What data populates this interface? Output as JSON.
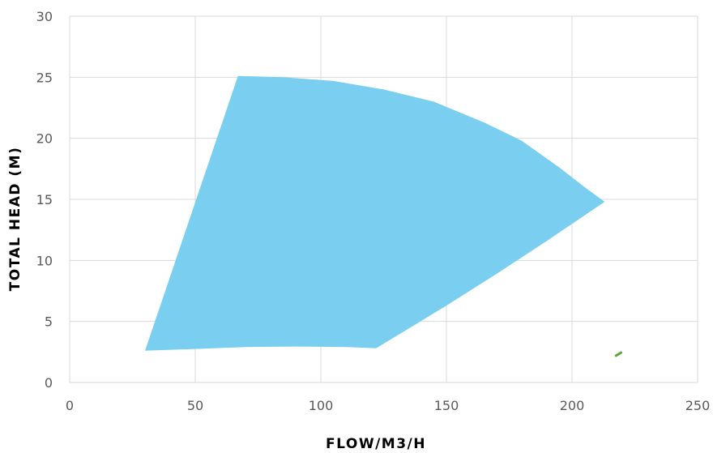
{
  "chart_data": {
    "type": "area",
    "title": "",
    "xlabel": "FLOW/M3/H",
    "ylabel": "TOTAL HEAD (M)",
    "xlim": [
      0,
      250
    ],
    "ylim": [
      0,
      30
    ],
    "xticks": [
      "0",
      "50",
      "100",
      "150",
      "200",
      "250"
    ],
    "yticks": [
      "0",
      "5",
      "10",
      "15",
      "20",
      "25",
      "30"
    ],
    "grid": true,
    "legend": "none",
    "series": [
      {
        "type": "area",
        "color": "#7ACFF0",
        "points": [
          [
            67,
            25.1
          ],
          [
            85,
            25.0
          ],
          [
            105,
            24.7
          ],
          [
            125,
            24.0
          ],
          [
            145,
            23.0
          ],
          [
            165,
            21.3
          ],
          [
            180,
            19.8
          ],
          [
            195,
            17.6
          ],
          [
            205,
            16.0
          ],
          [
            213,
            14.8
          ],
          [
            190,
            11.6
          ],
          [
            170,
            8.9
          ],
          [
            150,
            6.3
          ],
          [
            122,
            2.8
          ],
          [
            110,
            2.9
          ],
          [
            90,
            2.95
          ],
          [
            70,
            2.9
          ],
          [
            50,
            2.75
          ],
          [
            30,
            2.6
          ]
        ]
      },
      {
        "type": "line",
        "color": "#5BA53A",
        "points": [
          [
            217.5,
            2.2
          ],
          [
            219.5,
            2.45
          ]
        ]
      }
    ]
  }
}
